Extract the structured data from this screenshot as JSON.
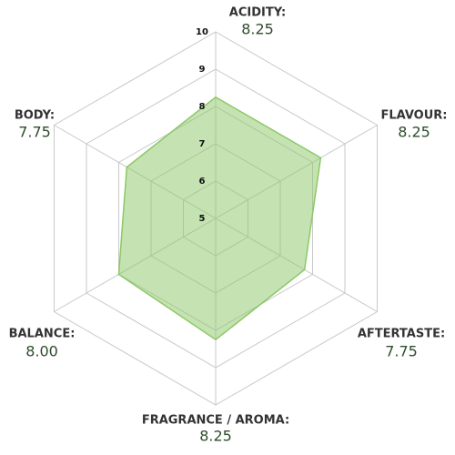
{
  "chart_data": {
    "type": "radar",
    "categories": [
      "ACIDITY:",
      "FLAVOUR:",
      "AFTERTASTE:",
      "FRAGRANCE / AROMA:",
      "BALANCE:",
      "BODY:"
    ],
    "values": [
      8.25,
      8.25,
      7.75,
      8.25,
      8.0,
      7.75
    ],
    "value_labels": [
      "8.25",
      "8.25",
      "7.75",
      "8.25",
      "8.00",
      "7.75"
    ],
    "ylim": [
      5,
      10
    ],
    "yticks": [
      5,
      6,
      7,
      8,
      9,
      10
    ],
    "color": "#8cc866",
    "grid": true
  }
}
